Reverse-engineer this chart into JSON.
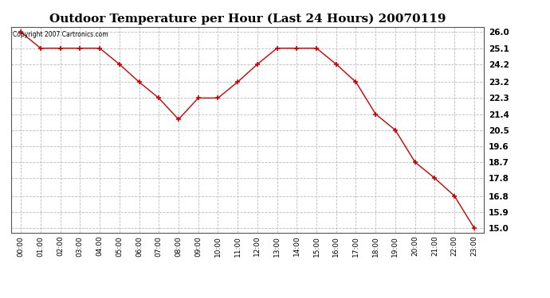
{
  "title": "Outdoor Temperature per Hour (Last 24 Hours) 20070119",
  "copyright_text": "Copyright 2007 Cartronics.com",
  "hours": [
    "00:00",
    "01:00",
    "02:00",
    "03:00",
    "04:00",
    "05:00",
    "06:00",
    "07:00",
    "08:00",
    "09:00",
    "10:00",
    "11:00",
    "12:00",
    "13:00",
    "14:00",
    "15:00",
    "16:00",
    "17:00",
    "18:00",
    "19:00",
    "20:00",
    "21:00",
    "22:00",
    "23:00"
  ],
  "temperatures": [
    26.0,
    25.1,
    25.1,
    25.1,
    25.1,
    24.2,
    23.2,
    22.3,
    21.1,
    22.3,
    22.3,
    23.2,
    24.2,
    25.1,
    25.1,
    25.1,
    24.2,
    23.2,
    21.4,
    20.5,
    18.7,
    17.8,
    16.8,
    15.0
  ],
  "line_color": "#cc0000",
  "marker": "+",
  "marker_color": "#cc0000",
  "marker_size": 5,
  "background_color": "#ffffff",
  "plot_background_color": "#ffffff",
  "grid_color": "#bbbbbb",
  "title_fontsize": 11,
  "ytick_labels": [
    "15.0",
    "15.9",
    "16.8",
    "17.8",
    "18.7",
    "19.6",
    "20.5",
    "21.4",
    "22.3",
    "23.2",
    "24.2",
    "25.1",
    "26.0"
  ],
  "ytick_values": [
    15.0,
    15.9,
    16.8,
    17.8,
    18.7,
    19.6,
    20.5,
    21.4,
    22.3,
    23.2,
    24.2,
    25.1,
    26.0
  ],
  "ylim_min": 14.75,
  "ylim_max": 26.3
}
